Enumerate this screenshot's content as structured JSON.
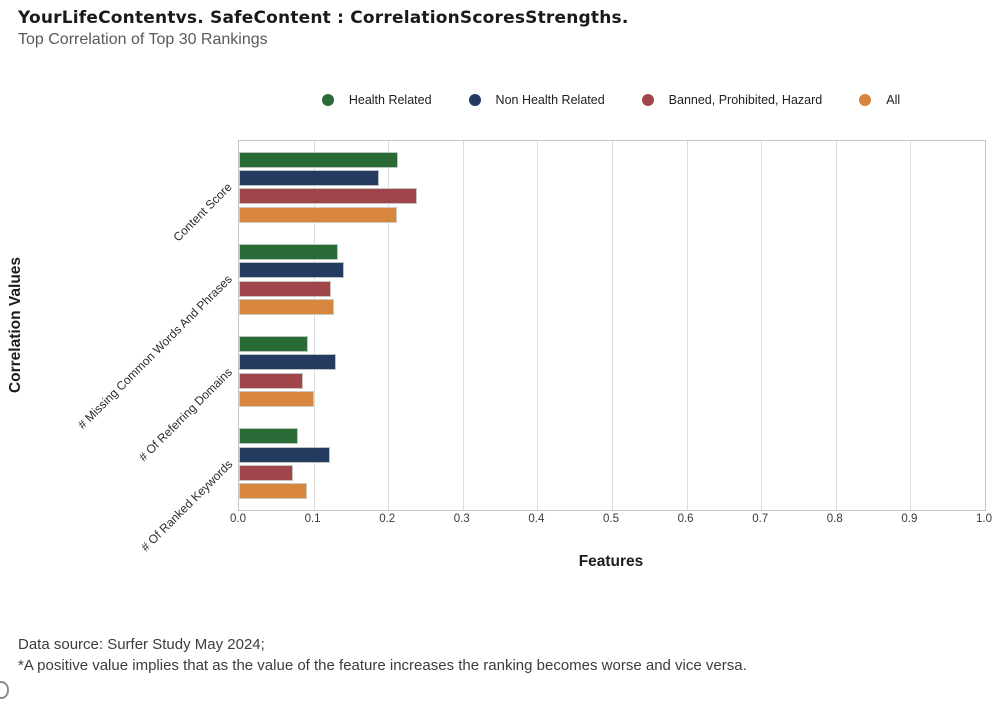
{
  "footer": {
    "line1": "Data source: Surfer Study May 2024;",
    "line2": "*A positive value implies that as the value of the feature increases the ranking becomes worse and vice versa."
  },
  "chart_data": {
    "type": "bar",
    "orientation": "horizontal",
    "title": "YourLifeContentvs. SafeContent :  CorrelationScoresStrengths.",
    "subtitle": "Top Correlation of Top 30 Rankings",
    "xlabel": "Features",
    "ylabel": "Correlation Values",
    "categories": [
      "Content Score",
      "# Missing Common Words And Phrases",
      "# Of Referring Domains",
      "# Of Ranked Keywords"
    ],
    "series": [
      {
        "name": "Health Related",
        "color": "#2a6a36",
        "values": [
          0.213,
          0.133,
          0.093,
          0.079
        ]
      },
      {
        "name": "Non Health Related",
        "color": "#243a5e",
        "values": [
          0.188,
          0.141,
          0.13,
          0.122
        ]
      },
      {
        "name": "Banned, Prohibited, Hazard",
        "color": "#a04549",
        "values": [
          0.239,
          0.123,
          0.086,
          0.072
        ]
      },
      {
        "name": "All",
        "color": "#d8863e",
        "values": [
          0.212,
          0.128,
          0.101,
          0.091
        ]
      }
    ],
    "xlim": [
      0.0,
      1.0
    ],
    "xticks": [
      "0.0",
      "0.1",
      "0.2",
      "0.3",
      "0.4",
      "0.5",
      "0.6",
      "0.7",
      "0.8",
      "0.9",
      "1.0"
    ],
    "grid": true,
    "legend_position": "top-center"
  }
}
